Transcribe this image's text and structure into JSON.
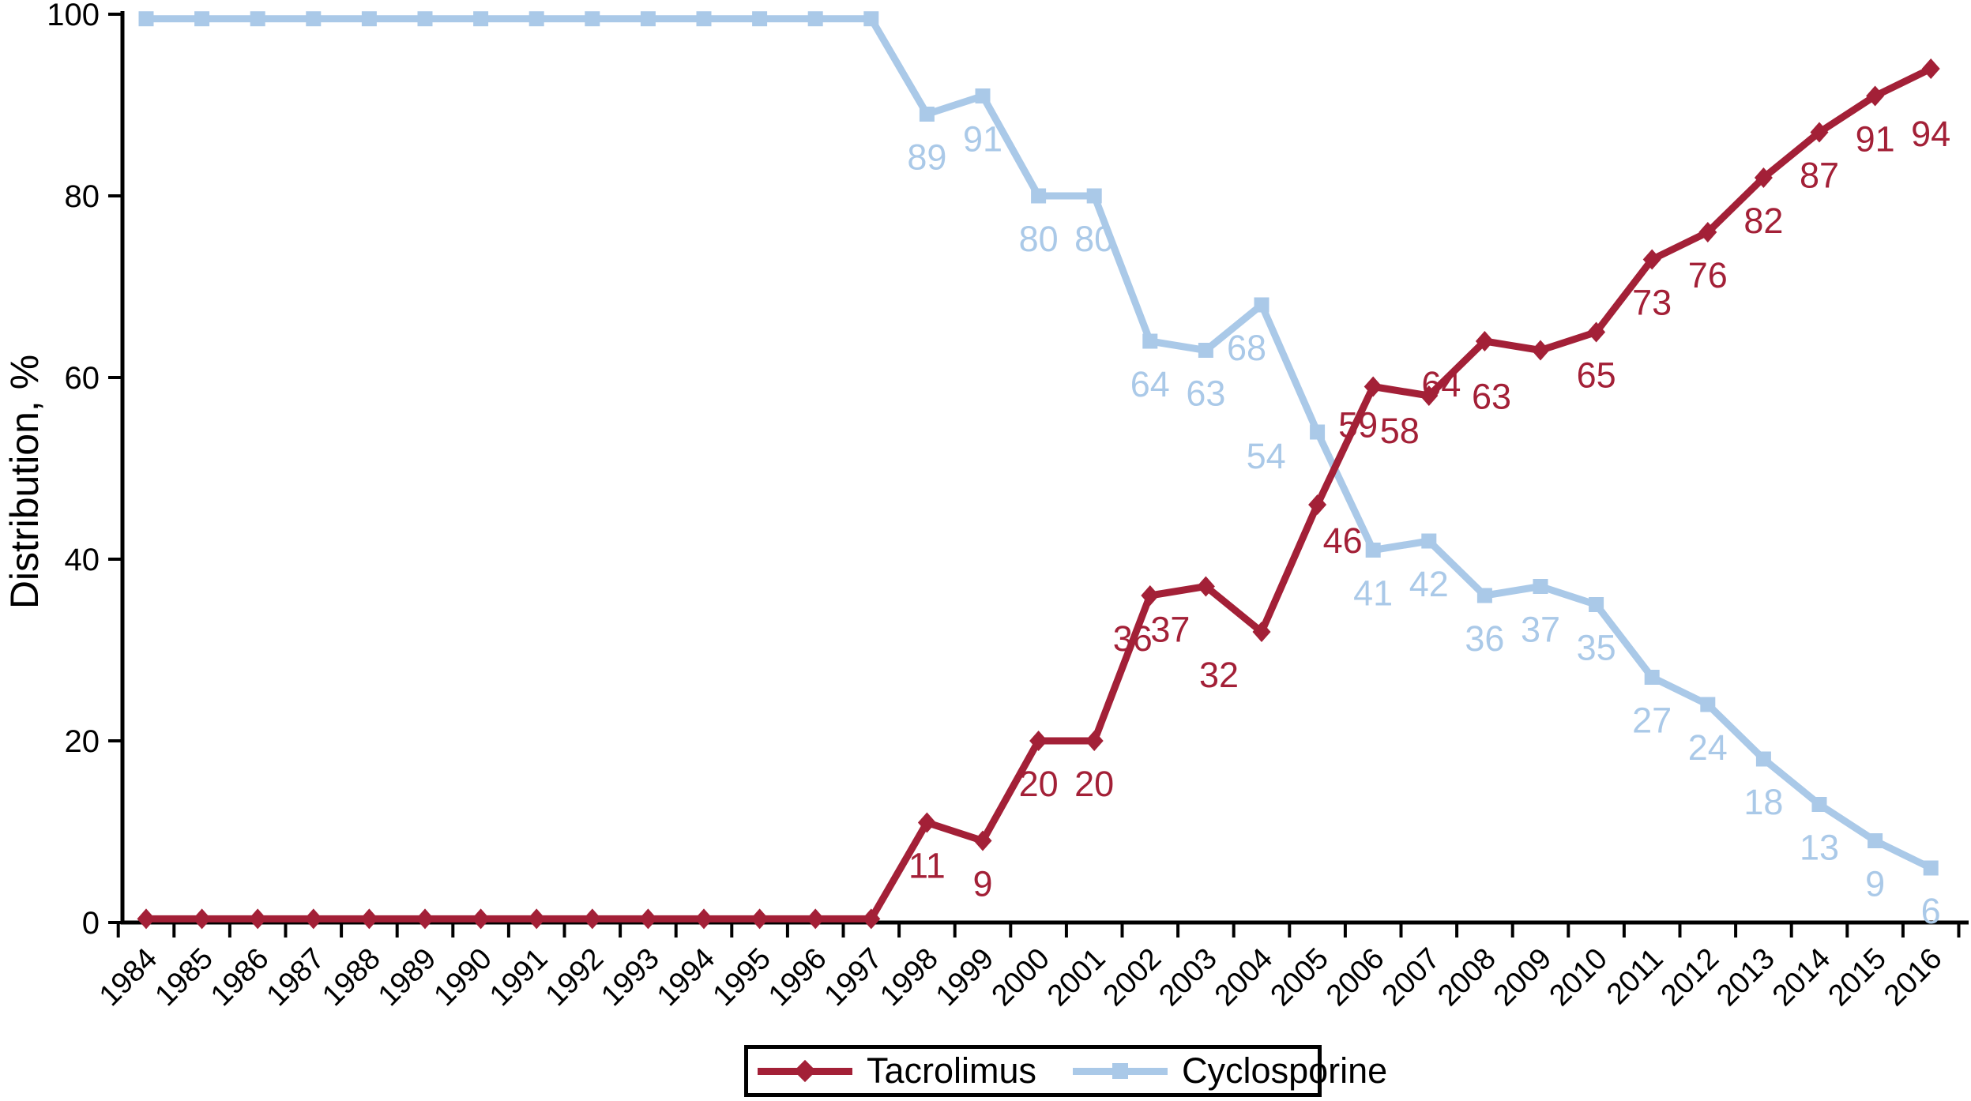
{
  "figure": {
    "background": "#ffffff",
    "axis_color": "#000000"
  },
  "chart_data": {
    "type": "line",
    "title": "",
    "xlabel": "",
    "ylabel": "Distribution, %",
    "ylim": [
      0,
      100
    ],
    "y_ticks": [
      "0",
      "20",
      "40",
      "60",
      "80",
      "100"
    ],
    "grid": "off",
    "categories": [
      "1984",
      "1985",
      "1986",
      "1987",
      "1988",
      "1989",
      "1990",
      "1991",
      "1992",
      "1993",
      "1994",
      "1995",
      "1996",
      "1997",
      "1998",
      "1999",
      "2000",
      "2001",
      "2002",
      "2003",
      "2004",
      "2005",
      "2006",
      "2007",
      "2008",
      "2009",
      "2010",
      "2011",
      "2012",
      "2013",
      "2014",
      "2015",
      "2016"
    ],
    "series": [
      {
        "name": "Tacrolimus",
        "color": "#A32037",
        "marker": "diamond-marker-icon",
        "values": [
          0.4,
          0.4,
          0.4,
          0.4,
          0.4,
          0.4,
          0.4,
          0.4,
          0.4,
          0.4,
          0.4,
          0.4,
          0.4,
          0.4,
          11,
          9,
          20,
          20,
          36,
          37,
          32,
          46,
          59,
          58,
          64,
          63,
          65,
          73,
          76,
          82,
          87,
          91,
          94
        ],
        "point_labels": [
          null,
          null,
          null,
          null,
          null,
          null,
          null,
          null,
          null,
          null,
          null,
          null,
          null,
          null,
          "11",
          "9",
          "20",
          "20",
          "36",
          "37",
          "32",
          "46",
          "59",
          "58",
          "64",
          "63",
          "65",
          "73",
          "76",
          "82",
          "87",
          "91",
          "94"
        ]
      },
      {
        "name": "Cyclosporine",
        "color": "#AAC9E8",
        "marker": "square-marker-icon",
        "values": [
          99.5,
          99.5,
          99.5,
          99.5,
          99.5,
          99.5,
          99.5,
          99.5,
          99.5,
          99.5,
          99.5,
          99.5,
          99.5,
          99.5,
          89,
          91,
          80,
          80,
          64,
          63,
          68,
          54,
          41,
          42,
          36,
          37,
          35,
          27,
          24,
          18,
          13,
          9,
          6
        ],
        "point_labels": [
          null,
          null,
          null,
          null,
          null,
          null,
          null,
          null,
          null,
          null,
          null,
          null,
          null,
          null,
          "89",
          "91",
          "80",
          "80",
          "64",
          "63",
          "68",
          "54",
          "41",
          "42",
          "36",
          "37",
          "35",
          "27",
          "24",
          "18",
          "13",
          "9",
          "6"
        ]
      }
    ],
    "legend": {
      "position": "bottom",
      "items": [
        "Tacrolimus",
        "Cyclosporine"
      ]
    }
  }
}
